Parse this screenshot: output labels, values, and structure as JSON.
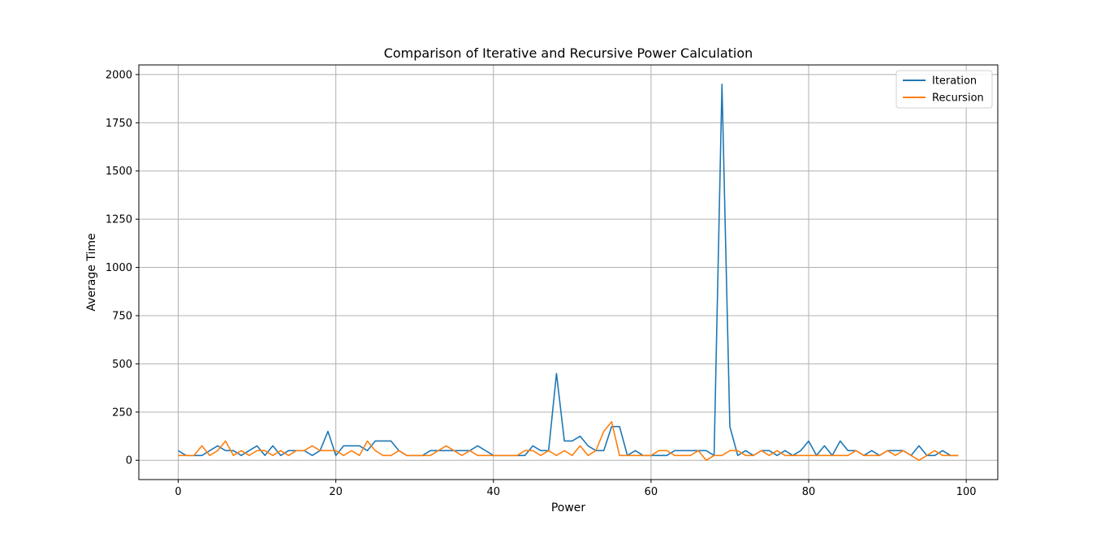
{
  "chart_data": {
    "type": "line",
    "title": "Comparison of Iterative and Recursive Power Calculation",
    "xlabel": "Power",
    "ylabel": "Average Time",
    "xlim": [
      -5,
      104
    ],
    "ylim": [
      -100,
      2050
    ],
    "xticks": [
      0,
      20,
      40,
      60,
      80,
      100
    ],
    "yticks": [
      0,
      250,
      500,
      750,
      1000,
      1250,
      1500,
      1750,
      2000
    ],
    "grid": true,
    "legend_position": "top-right",
    "x": [
      0,
      1,
      2,
      3,
      4,
      5,
      6,
      7,
      8,
      9,
      10,
      11,
      12,
      13,
      14,
      15,
      16,
      17,
      18,
      19,
      20,
      21,
      22,
      23,
      24,
      25,
      26,
      27,
      28,
      29,
      30,
      31,
      32,
      33,
      34,
      35,
      36,
      37,
      38,
      39,
      40,
      41,
      42,
      43,
      44,
      45,
      46,
      47,
      48,
      49,
      50,
      51,
      52,
      53,
      54,
      55,
      56,
      57,
      58,
      59,
      60,
      61,
      62,
      63,
      64,
      65,
      66,
      67,
      68,
      69,
      70,
      71,
      72,
      73,
      74,
      75,
      76,
      77,
      78,
      79,
      80,
      81,
      82,
      83,
      84,
      85,
      86,
      87,
      88,
      89,
      90,
      91,
      92,
      93,
      94,
      95,
      96,
      97,
      98,
      99
    ],
    "series": [
      {
        "name": "Iteration",
        "color": "#1f77b4",
        "values": [
          50,
          25,
          25,
          25,
          50,
          75,
          50,
          50,
          25,
          50,
          75,
          25,
          75,
          25,
          50,
          50,
          50,
          25,
          50,
          150,
          25,
          75,
          75,
          75,
          50,
          100,
          100,
          100,
          50,
          25,
          25,
          25,
          50,
          50,
          50,
          50,
          50,
          50,
          75,
          50,
          25,
          25,
          25,
          25,
          25,
          75,
          50,
          50,
          450,
          100,
          100,
          125,
          75,
          50,
          50,
          175,
          175,
          25,
          50,
          25,
          25,
          25,
          25,
          50,
          50,
          50,
          50,
          50,
          25,
          1950,
          175,
          25,
          50,
          25,
          50,
          50,
          25,
          50,
          25,
          50,
          100,
          25,
          75,
          25,
          100,
          50,
          50,
          25,
          50,
          25,
          50,
          50,
          50,
          25,
          75,
          25,
          25,
          50,
          25,
          25
        ]
      },
      {
        "name": "Recursion",
        "color": "#ff7f0e",
        "values": [
          25,
          25,
          25,
          75,
          25,
          50,
          100,
          25,
          50,
          25,
          50,
          50,
          25,
          50,
          25,
          50,
          50,
          75,
          50,
          50,
          50,
          25,
          50,
          25,
          100,
          50,
          25,
          25,
          50,
          25,
          25,
          25,
          25,
          50,
          75,
          50,
          25,
          50,
          25,
          25,
          25,
          25,
          25,
          25,
          50,
          50,
          25,
          50,
          25,
          50,
          25,
          75,
          25,
          50,
          150,
          200,
          25,
          25,
          25,
          25,
          25,
          50,
          50,
          25,
          25,
          25,
          50,
          0,
          25,
          25,
          50,
          50,
          25,
          25,
          50,
          25,
          50,
          25,
          25,
          25,
          25,
          25,
          25,
          25,
          25,
          25,
          50,
          25,
          25,
          25,
          50,
          25,
          50,
          25,
          0,
          25,
          50,
          25,
          25,
          25
        ]
      }
    ]
  }
}
